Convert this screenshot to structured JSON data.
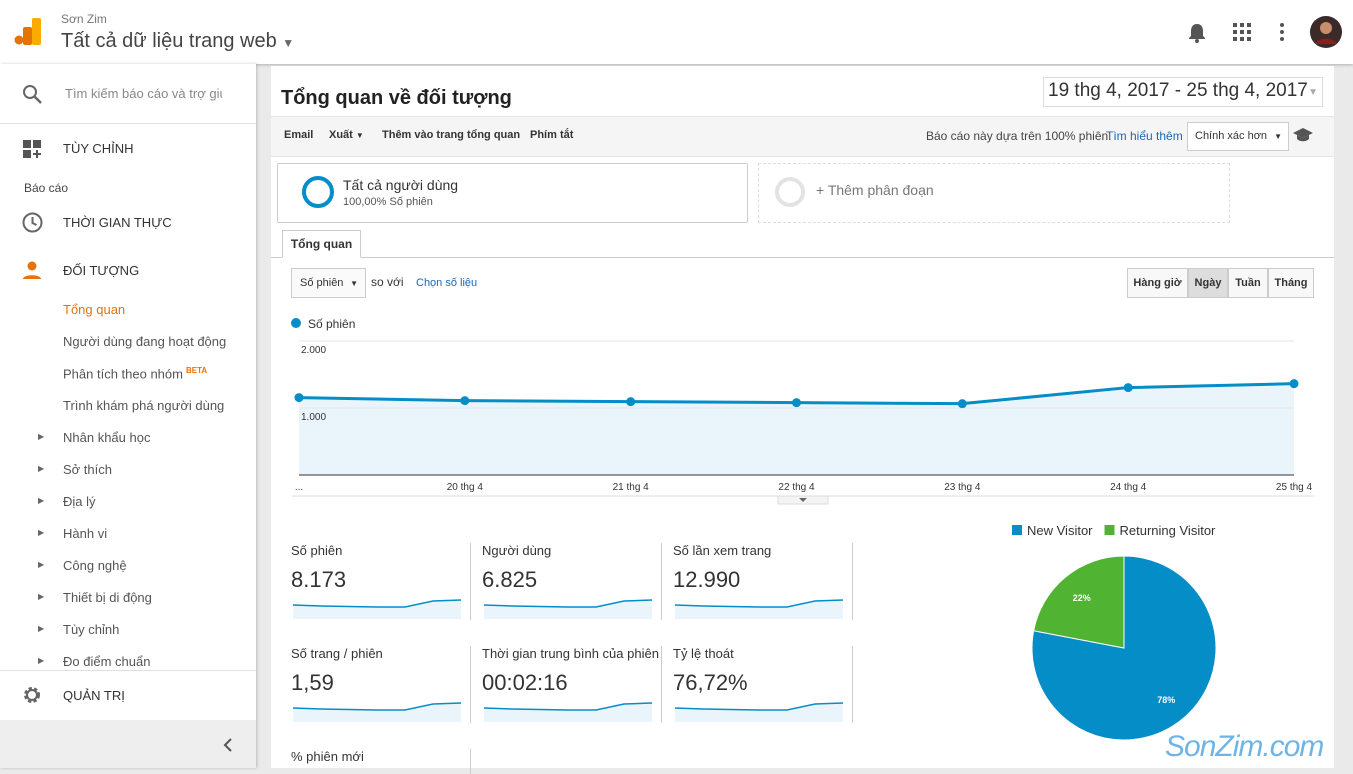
{
  "header": {
    "account": "Sơn Zim",
    "property": "Tất cả dữ liệu trang web"
  },
  "sidebar": {
    "search": "Tìm kiếm báo cáo và trợ giúp",
    "customize": "TÙY CHỈNH",
    "reports": "Báo cáo",
    "realtime": "THỜI GIAN THỰC",
    "audience": "ĐỐI TƯỢNG",
    "items": [
      "Tổng quan",
      "Người dùng đang hoạt động",
      "Phân tích theo nhóm",
      "Trình khám phá người dùng",
      "Nhân khẩu học",
      "Sở thích",
      "Địa lý",
      "Hành vi",
      "Công nghệ",
      "Thiết bị di động",
      "Tùy chỉnh",
      "Đo điểm chuẩn"
    ],
    "beta": "BETA",
    "admin": "QUẢN TRỊ"
  },
  "report": {
    "title": "Tổng quan về đối tượng",
    "date_range": "19 thg 4, 2017 - 25 thg 4, 2017",
    "toolbar": [
      "Email",
      "Xuất",
      "Thêm vào trang tổng quan",
      "Phím tắt"
    ],
    "sampling": "Báo cáo này dựa trên 100% phiên.",
    "learn_more": "Tìm hiểu thêm",
    "precision": "Chính xác hơn",
    "segment": {
      "name": "Tất cả người dùng",
      "share": "100,00% Số phiên"
    },
    "add_segment": "+ Thêm phân đoạn",
    "tab": "Tổng quan",
    "metric_select": "Số phiên",
    "compare": "so với",
    "choose_metric": "Chọn số liệu",
    "granularity": [
      "Hàng giờ",
      "Ngày",
      "Tuần",
      "Tháng"
    ]
  },
  "metrics": [
    {
      "label": "Số phiên",
      "value": "8.173"
    },
    {
      "label": "Người dùng",
      "value": "6.825"
    },
    {
      "label": "Số lần xem trang",
      "value": "12.990"
    },
    {
      "label": "Số trang / phiên",
      "value": "1,59"
    },
    {
      "label": "Thời gian trung bình của phiên",
      "value": "00:02:16"
    },
    {
      "label": "Tỷ lệ thoát",
      "value": "76,72%"
    },
    {
      "label": "% phiên mới"
    }
  ],
  "watermark": "SonZim.com",
  "chart_data": [
    {
      "type": "line",
      "categories": [
        "...",
        "20 thg 4",
        "21 thg 4",
        "22 thg 4",
        "23 thg 4",
        "24 thg 4",
        "25 thg 4"
      ],
      "series": [
        {
          "name": "Số phiên",
          "color": "#058dc7",
          "values": [
            1155,
            1110,
            1095,
            1080,
            1065,
            1305,
            1363
          ]
        }
      ],
      "ylim": [
        0,
        2000
      ],
      "yticks": [
        {
          "value": 2000,
          "label": "2.000"
        },
        {
          "value": 1000,
          "label": "1.000"
        }
      ],
      "grid": true
    },
    {
      "type": "pie",
      "categories": [
        "New Visitor",
        "Returning Visitor"
      ],
      "values": [
        78,
        22
      ],
      "value_labels": [
        "78%",
        "22%"
      ],
      "colors": [
        "#058dc7",
        "#50b432"
      ]
    }
  ]
}
